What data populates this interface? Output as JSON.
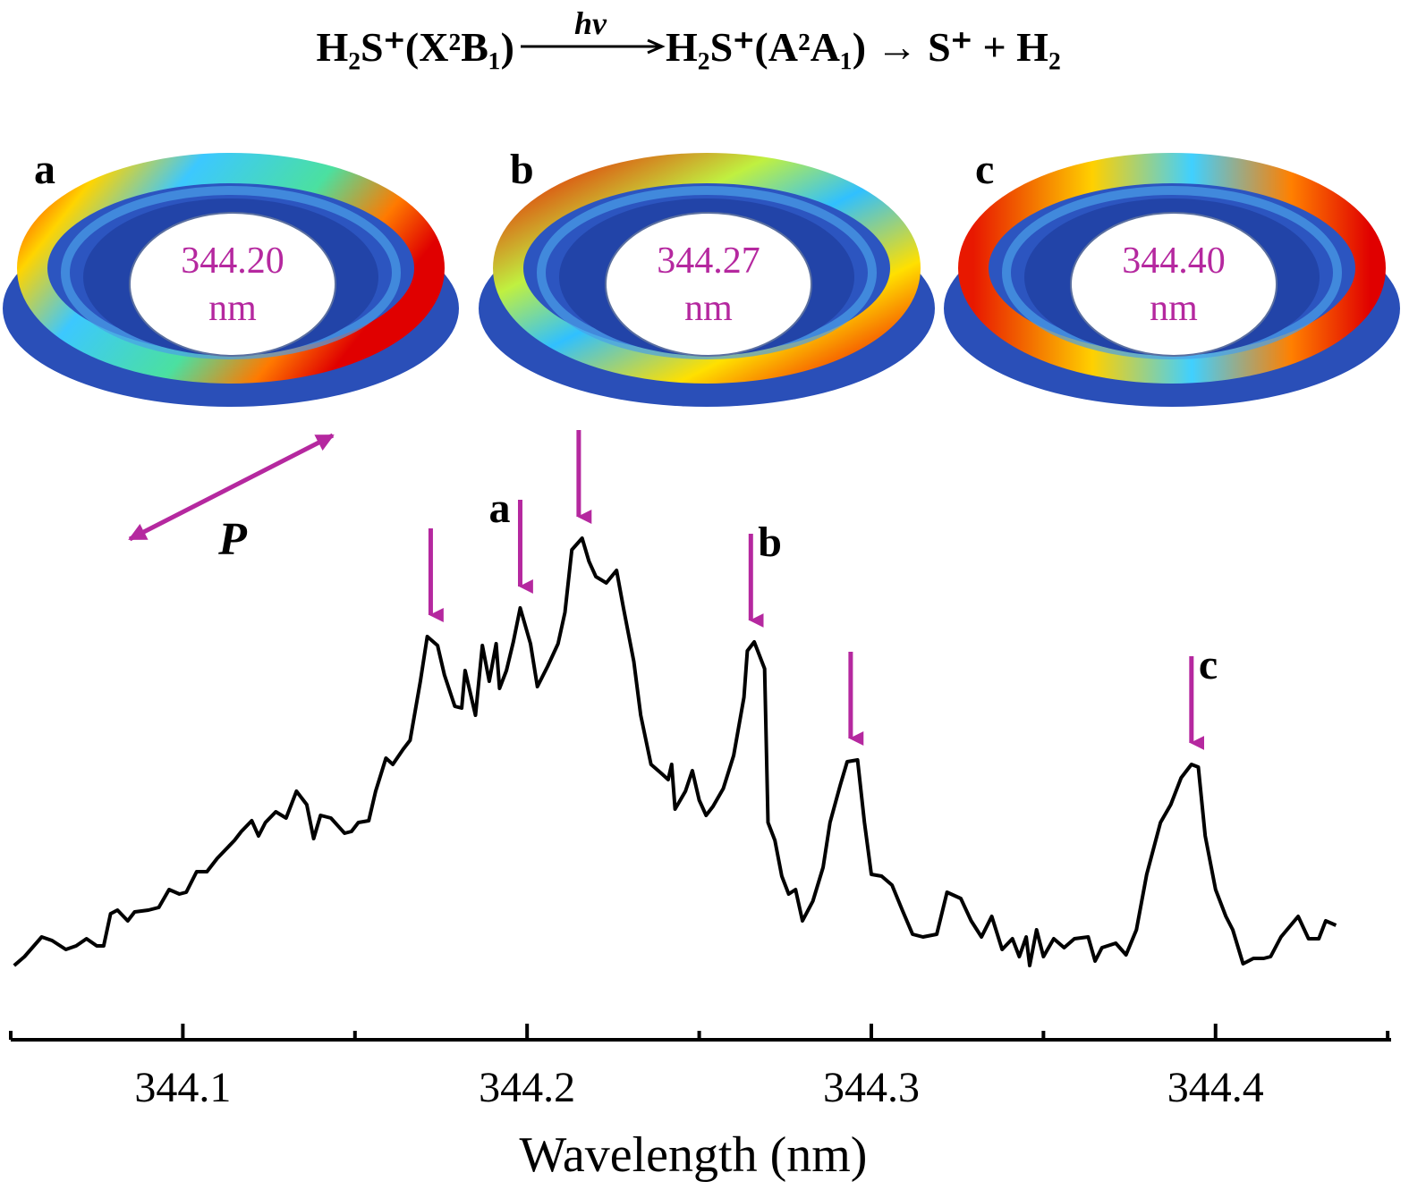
{
  "chart_data": {
    "type": "line",
    "equation": {
      "left": "H₂S⁺(X²B₁)",
      "arrow_label": "hv",
      "right": "H₂S⁺(A²A₁) → S⁺ + H₂"
    },
    "panels": [
      {
        "label": "a",
        "wavelength": "344.20",
        "unit": "nm"
      },
      {
        "label": "b",
        "wavelength": "344.27",
        "unit": "nm"
      },
      {
        "label": "c",
        "wavelength": "344.40",
        "unit": "nm"
      }
    ],
    "polarization_label": "P",
    "x_label": "Wavelength (nm)",
    "xlim": [
      344.05,
      344.451
    ],
    "xticks": [
      344.1,
      344.2,
      344.3,
      344.4
    ],
    "xminor_ticks": [
      344.05,
      344.15,
      344.25,
      344.35,
      344.45
    ],
    "ylim": [
      0,
      120
    ],
    "color": "#000000",
    "arrow_color": "#b5289f",
    "arrows": [
      {
        "x": 344.172
      },
      {
        "x": 344.198,
        "label": "a"
      },
      {
        "x": 344.215
      },
      {
        "x": 344.265,
        "label": "b"
      },
      {
        "x": 344.294
      },
      {
        "x": 344.393,
        "label": "c"
      }
    ],
    "x": [
      344.051,
      344.054,
      344.059,
      344.062,
      344.066,
      344.069,
      344.072,
      344.075,
      344.077,
      344.079,
      344.081,
      344.084,
      344.086,
      344.09,
      344.093,
      344.096,
      344.099,
      344.101,
      344.104,
      344.107,
      344.11,
      344.112,
      344.115,
      344.117,
      344.12,
      344.122,
      344.124,
      344.127,
      344.13,
      344.133,
      344.136,
      344.138,
      344.14,
      344.143,
      344.147,
      344.149,
      344.151,
      344.154,
      344.156,
      344.159,
      344.161,
      344.164,
      344.166,
      344.169,
      344.171,
      344.174,
      344.176,
      344.179,
      344.181,
      344.182,
      344.185,
      344.187,
      344.189,
      344.191,
      344.192,
      344.194,
      344.196,
      344.198,
      344.201,
      344.203,
      344.206,
      344.209,
      344.211,
      344.213,
      344.216,
      344.218,
      344.22,
      344.223,
      344.226,
      344.228,
      344.231,
      344.233,
      344.236,
      344.239,
      344.241,
      344.242,
      344.243,
      344.246,
      344.248,
      344.25,
      344.252,
      344.254,
      344.257,
      344.26,
      344.263,
      344.264,
      344.266,
      344.269,
      344.27,
      344.272,
      344.274,
      344.276,
      344.278,
      344.28,
      344.283,
      344.286,
      344.288,
      344.291,
      344.293,
      344.296,
      344.298,
      344.3,
      344.303,
      344.306,
      344.309,
      344.312,
      344.315,
      344.319,
      344.322,
      344.326,
      344.329,
      344.332,
      344.335,
      344.338,
      344.341,
      344.343,
      344.345,
      344.346,
      344.348,
      344.35,
      344.353,
      344.356,
      344.359,
      344.363,
      344.365,
      344.367,
      344.371,
      344.374,
      344.377,
      344.38,
      344.384,
      344.387,
      344.39,
      344.393,
      344.395,
      344.397,
      344.4,
      344.403,
      344.405,
      344.408,
      344.411,
      344.414,
      344.416,
      344.419,
      344.424,
      344.427,
      344.43,
      344.432,
      344.435
    ],
    "values": [
      16,
      18,
      22.4,
      21.6,
      19.6,
      20.4,
      22,
      20.4,
      20.4,
      27.6,
      28.4,
      26,
      28,
      28.4,
      29,
      33,
      32,
      32.4,
      37,
      37,
      40,
      41.6,
      44,
      46,
      48.4,
      45,
      48,
      50.4,
      49,
      55,
      52,
      44.4,
      49.6,
      49,
      45.6,
      46,
      48,
      48.4,
      55,
      62.4,
      61,
      64.4,
      66.4,
      79.6,
      89.6,
      87.6,
      81,
      74,
      73.6,
      82,
      72,
      87.6,
      79.6,
      88,
      78,
      82,
      88.4,
      96,
      88,
      78.4,
      83,
      88,
      95,
      109,
      111.6,
      106.4,
      103,
      101.6,
      104.4,
      96,
      84,
      72,
      61,
      59,
      57.6,
      61,
      51,
      55,
      59.6,
      53,
      49.6,
      51.6,
      55.6,
      63,
      76,
      86.4,
      88.4,
      82.4,
      48,
      44,
      36,
      32,
      33,
      26,
      30.4,
      38,
      48,
      56.4,
      61.6,
      62,
      48,
      36.4,
      36,
      34,
      28.4,
      23,
      22.4,
      23,
      32.4,
      31,
      26,
      22.4,
      27,
      19.6,
      22,
      18,
      22.4,
      16,
      24,
      18,
      22,
      20,
      22,
      22.4,
      17,
      20,
      21,
      18.4,
      24,
      36.4,
      48,
      52,
      58,
      61,
      60.4,
      45,
      33,
      27,
      24,
      16.4,
      17.6,
      17.6,
      18,
      22.4,
      27,
      22,
      22,
      26,
      25
    ]
  }
}
